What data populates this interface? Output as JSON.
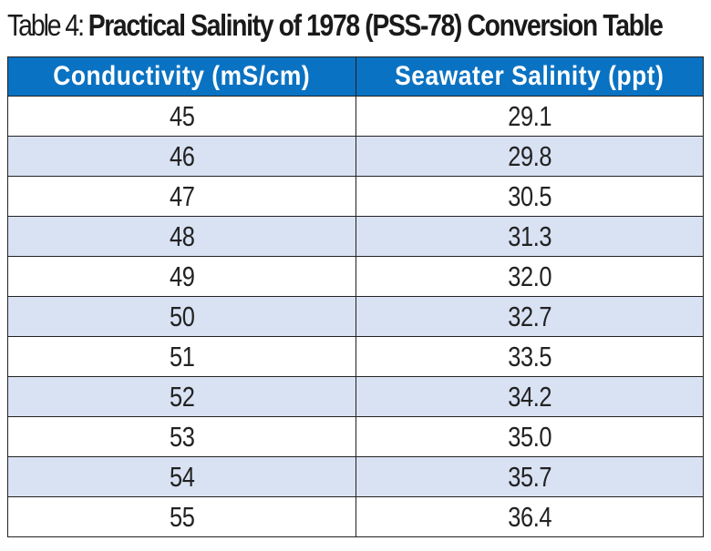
{
  "caption": {
    "lead": "Table 4: ",
    "title": "Practical Salinity of 1978 (PSS-78) Conversion Table"
  },
  "table": {
    "columns": [
      "Conductivity (mS/cm)",
      "Seawater Salinity (ppt)"
    ],
    "rows": [
      [
        "45",
        "29.1"
      ],
      [
        "46",
        "29.8"
      ],
      [
        "47",
        "30.5"
      ],
      [
        "48",
        "31.3"
      ],
      [
        "49",
        "32.0"
      ],
      [
        "50",
        "32.7"
      ],
      [
        "51",
        "33.5"
      ],
      [
        "52",
        "34.2"
      ],
      [
        "53",
        "35.0"
      ],
      [
        "54",
        "35.7"
      ],
      [
        "55",
        "36.4"
      ]
    ]
  },
  "colors": {
    "header_bg": "#0a72c2",
    "header_text": "#ffffff",
    "alt_row_bg": "#d9e2f3",
    "border": "#222222"
  }
}
